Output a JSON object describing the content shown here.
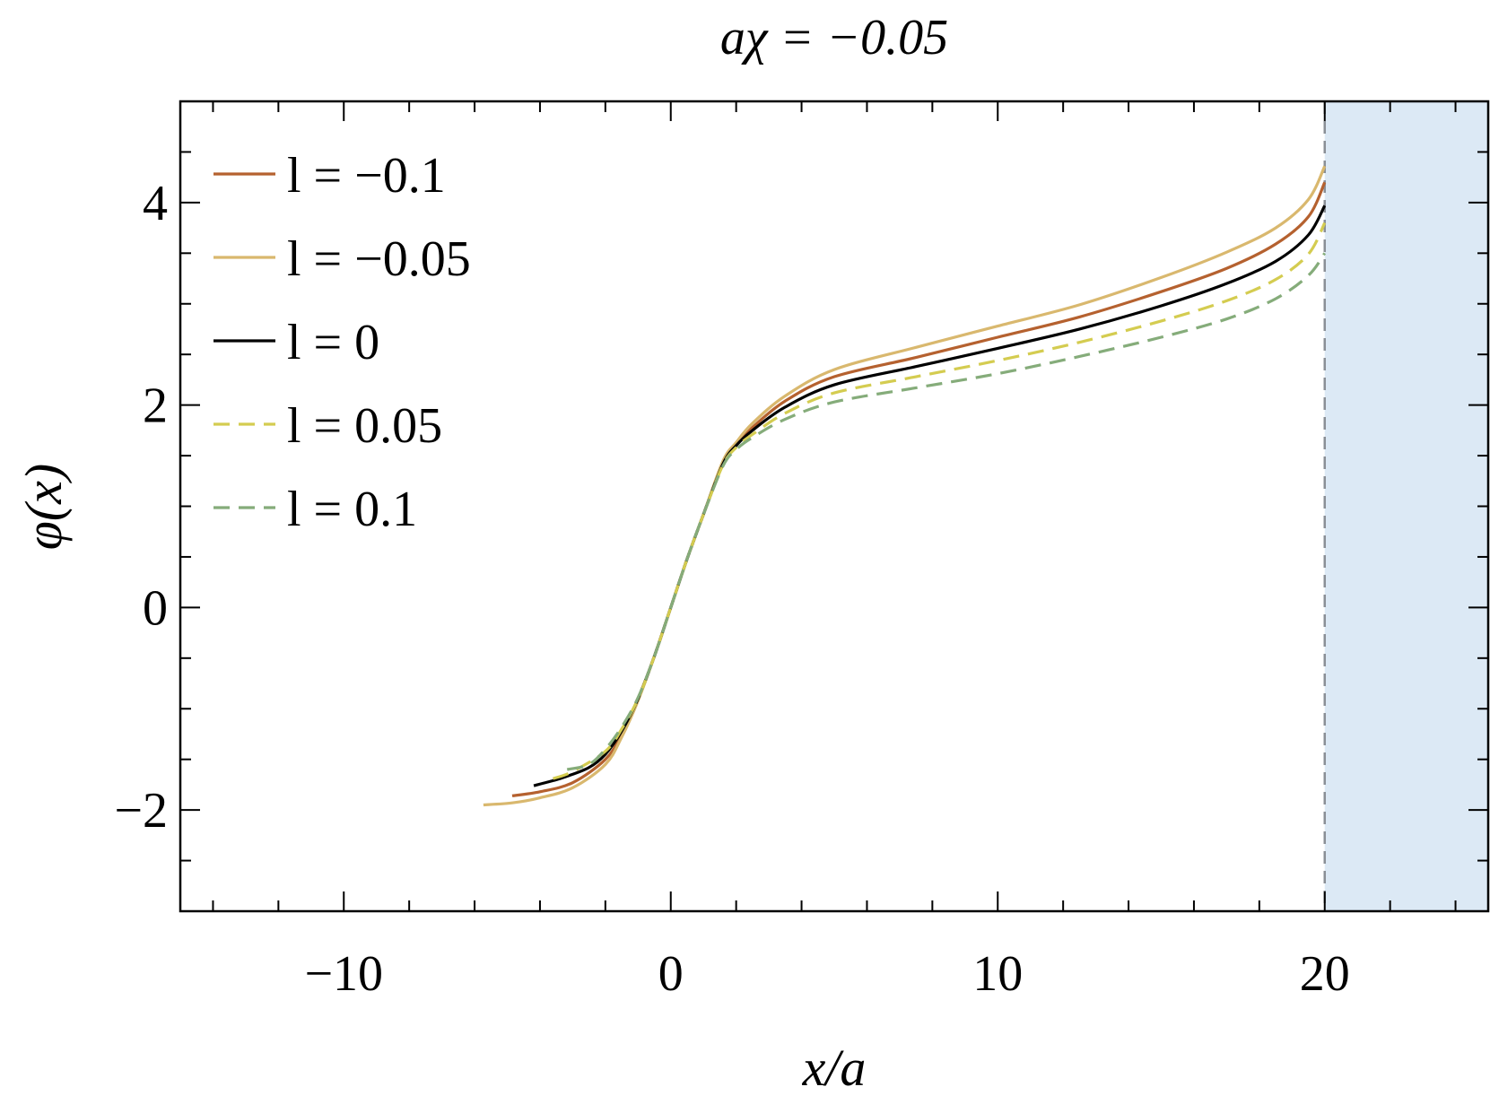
{
  "chart_data": {
    "type": "line",
    "title": "aχ = −0.05",
    "xlabel": "x/a",
    "ylabel": "φ(x)",
    "xlim": [
      -15,
      25
    ],
    "ylim": [
      -3,
      5
    ],
    "xticks": [
      -10,
      0,
      10,
      20
    ],
    "xtick_labels": [
      "−10",
      "0",
      "10",
      "20"
    ],
    "yticks": [
      -2,
      0,
      2,
      4
    ],
    "ytick_labels": [
      "−2",
      "0",
      "2",
      "4"
    ],
    "x_minor_step": 2,
    "y_minor_step": 0.5,
    "grid": false,
    "legend_position": "top-left",
    "shaded_region": {
      "x": [
        20,
        25
      ],
      "color": "#dce9f5",
      "boundary_color": "#8a8f96",
      "boundary_dashed": true
    },
    "series": [
      {
        "name": "l = −0.1",
        "color": "#b5612f",
        "dashed": false,
        "points": [
          [
            -4.85,
            -1.86
          ],
          [
            -4,
            -1.82
          ],
          [
            -3,
            -1.73
          ],
          [
            -2,
            -1.5
          ],
          [
            -1.5,
            -1.25
          ],
          [
            -1,
            -0.9
          ],
          [
            -0.5,
            -0.48
          ],
          [
            0,
            0
          ],
          [
            0.5,
            0.48
          ],
          [
            1,
            0.92
          ],
          [
            1.6,
            1.43
          ],
          [
            2,
            1.62
          ],
          [
            2.5,
            1.78
          ],
          [
            3.5,
            2.04
          ],
          [
            5,
            2.28
          ],
          [
            7.5,
            2.47
          ],
          [
            10,
            2.67
          ],
          [
            12.5,
            2.87
          ],
          [
            15,
            3.12
          ],
          [
            17,
            3.35
          ],
          [
            18.5,
            3.59
          ],
          [
            19.5,
            3.86
          ],
          [
            20,
            4.2
          ]
        ]
      },
      {
        "name": "l = −0.05",
        "color": "#d9b86e",
        "dashed": false,
        "points": [
          [
            -5.73,
            -1.95
          ],
          [
            -4.85,
            -1.93
          ],
          [
            -4,
            -1.88
          ],
          [
            -3,
            -1.78
          ],
          [
            -2,
            -1.55
          ],
          [
            -1.5,
            -1.28
          ],
          [
            -1,
            -0.92
          ],
          [
            -0.5,
            -0.48
          ],
          [
            0,
            0
          ],
          [
            0.5,
            0.48
          ],
          [
            1,
            0.92
          ],
          [
            1.6,
            1.45
          ],
          [
            2,
            1.63
          ],
          [
            2.5,
            1.82
          ],
          [
            3.5,
            2.09
          ],
          [
            5,
            2.35
          ],
          [
            7.5,
            2.57
          ],
          [
            10,
            2.78
          ],
          [
            12.5,
            2.99
          ],
          [
            15,
            3.26
          ],
          [
            17,
            3.51
          ],
          [
            18.5,
            3.75
          ],
          [
            19.5,
            4.03
          ],
          [
            20,
            4.36
          ]
        ]
      },
      {
        "name": "l = 0",
        "color": "#000000",
        "dashed": false,
        "points": [
          [
            -4.19,
            -1.76
          ],
          [
            -3.6,
            -1.71
          ],
          [
            -3.2,
            -1.67
          ],
          [
            -2.5,
            -1.58
          ],
          [
            -2,
            -1.45
          ],
          [
            -1.5,
            -1.22
          ],
          [
            -1,
            -0.9
          ],
          [
            -0.5,
            -0.48
          ],
          [
            0,
            0
          ],
          [
            0.5,
            0.48
          ],
          [
            1,
            0.92
          ],
          [
            1.6,
            1.42
          ],
          [
            2,
            1.6
          ],
          [
            2.5,
            1.75
          ],
          [
            3.5,
            1.98
          ],
          [
            5,
            2.2
          ],
          [
            7.5,
            2.38
          ],
          [
            10,
            2.56
          ],
          [
            12.5,
            2.75
          ],
          [
            15,
            2.98
          ],
          [
            17,
            3.2
          ],
          [
            18.5,
            3.42
          ],
          [
            19.5,
            3.68
          ],
          [
            20,
            3.97
          ]
        ]
      },
      {
        "name": "l = 0.05",
        "color": "#d4cc50",
        "dashed": true,
        "points": [
          [
            -3.6,
            -1.69
          ],
          [
            -3,
            -1.62
          ],
          [
            -2,
            -1.42
          ],
          [
            -1.5,
            -1.2
          ],
          [
            -1,
            -0.9
          ],
          [
            -0.5,
            -0.48
          ],
          [
            0,
            0
          ],
          [
            0.5,
            0.48
          ],
          [
            1,
            0.92
          ],
          [
            1.6,
            1.41
          ],
          [
            2,
            1.58
          ],
          [
            2.5,
            1.71
          ],
          [
            3.5,
            1.92
          ],
          [
            5,
            2.12
          ],
          [
            7.5,
            2.28
          ],
          [
            10,
            2.44
          ],
          [
            12.5,
            2.62
          ],
          [
            15,
            2.83
          ],
          [
            17,
            3.03
          ],
          [
            18.5,
            3.24
          ],
          [
            19.5,
            3.49
          ],
          [
            20,
            3.8
          ]
        ]
      },
      {
        "name": "l = 0.1",
        "color": "#85ac7a",
        "dashed": true,
        "points": [
          [
            -3.17,
            -1.6
          ],
          [
            -2.5,
            -1.55
          ],
          [
            -2,
            -1.4
          ],
          [
            -1.5,
            -1.18
          ],
          [
            -1,
            -0.89
          ],
          [
            -0.5,
            -0.48
          ],
          [
            0,
            0
          ],
          [
            0.5,
            0.48
          ],
          [
            1,
            0.92
          ],
          [
            1.6,
            1.4
          ],
          [
            2,
            1.56
          ],
          [
            2.5,
            1.68
          ],
          [
            3.5,
            1.86
          ],
          [
            5,
            2.03
          ],
          [
            7.5,
            2.17
          ],
          [
            10,
            2.31
          ],
          [
            12.5,
            2.48
          ],
          [
            15,
            2.67
          ],
          [
            17,
            2.85
          ],
          [
            18.5,
            3.05
          ],
          [
            19.5,
            3.28
          ],
          [
            20,
            3.5
          ]
        ]
      }
    ]
  }
}
